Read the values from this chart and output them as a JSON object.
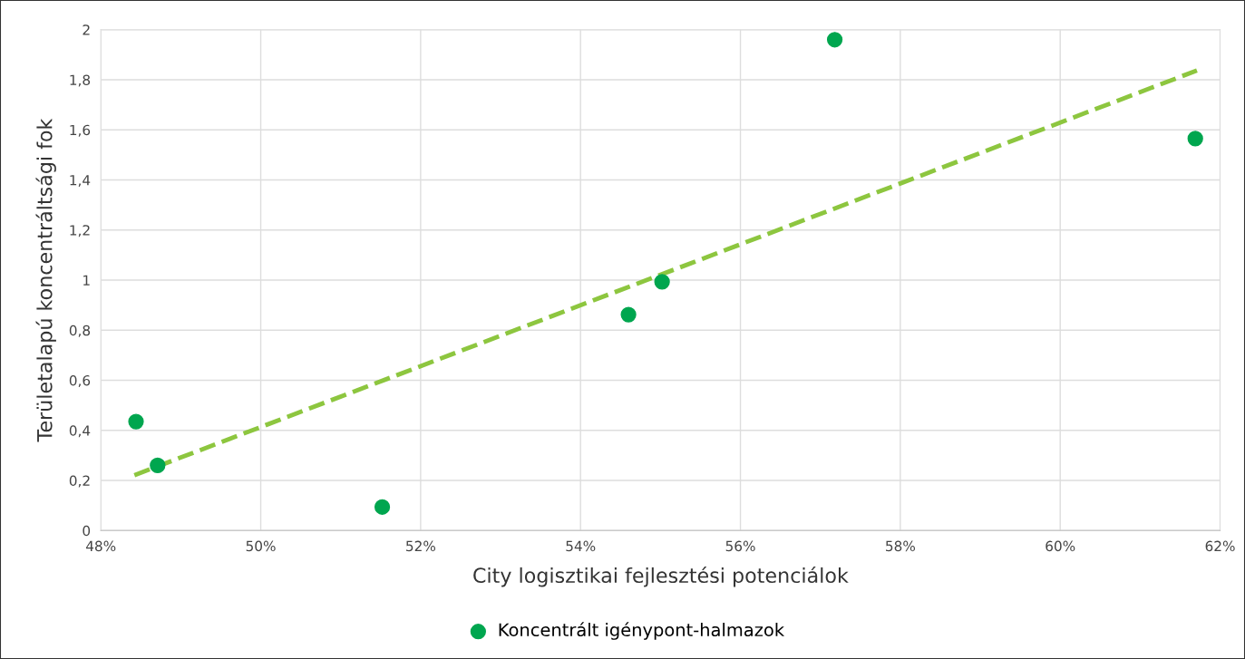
{
  "chart_data": {
    "type": "scatter",
    "xlabel": "City logisztikai fejlesztési potenciálok",
    "ylabel": "Területalapú koncentráltsági fok",
    "series": [
      {
        "name": "Koncentrált igénypont-halmazok",
        "color": "#00a64f",
        "marker": "circle",
        "x": [
          48.44,
          48.71,
          51.52,
          54.6,
          55.02,
          57.18,
          61.69
        ],
        "values": [
          0.435,
          0.26,
          0.094,
          0.862,
          0.993,
          1.96,
          1.565
        ]
      },
      {
        "type": "line",
        "color": "#8dc63f",
        "line_style": "dashed",
        "marker": "none",
        "x": [
          48.42,
          61.71
        ],
        "values": [
          0.221,
          1.837
        ]
      }
    ],
    "xlim": [
      48,
      62
    ],
    "xticks": [
      {
        "value": 48,
        "label": "48%"
      },
      {
        "value": 50,
        "label": "50%"
      },
      {
        "value": 52,
        "label": "52%"
      },
      {
        "value": 54,
        "label": "54%"
      },
      {
        "value": 56,
        "label": "56%"
      },
      {
        "value": 58,
        "label": "58%"
      },
      {
        "value": 60,
        "label": "60%"
      },
      {
        "value": 62,
        "label": "62%"
      }
    ],
    "ylim": [
      0,
      2
    ],
    "yticks": [
      0,
      {
        "value": 0.2,
        "label": "0,2"
      },
      {
        "value": 0.4,
        "label": "0,4"
      },
      {
        "value": 0.6,
        "label": "0,6"
      },
      {
        "value": 0.8,
        "label": "0,8"
      },
      1,
      {
        "value": 1.2,
        "label": "1,2"
      },
      {
        "value": 1.4,
        "label": "1,4"
      },
      {
        "value": 1.6,
        "label": "1,6"
      },
      {
        "value": 1.8,
        "label": "1,8"
      },
      2
    ],
    "grid": true,
    "legend": "bottom"
  }
}
